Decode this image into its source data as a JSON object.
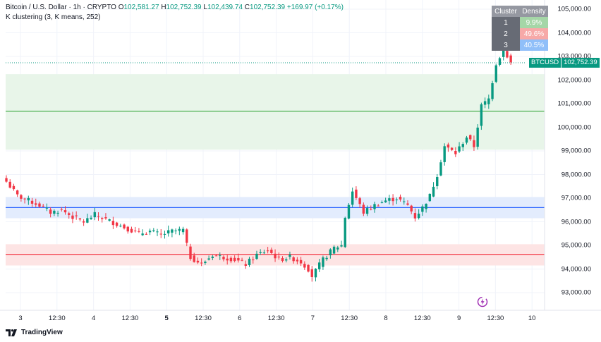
{
  "header": {
    "symbol": "Bitcoin / U.S. Dollar · 1h · CRYPTO",
    "o_label": "O",
    "o_value": "102,581.27",
    "h_label": "H",
    "h_value": "102,752.39",
    "l_label": "L",
    "l_value": "102,439.74",
    "c_label": "C",
    "c_value": "102,752.39",
    "change": "+169.97 (+0.17%)"
  },
  "indicator": {
    "label": "K clustering (3, K means, 252)"
  },
  "cluster_table": {
    "headers": [
      "Cluster",
      "Density"
    ],
    "rows": [
      {
        "id": "1",
        "density": "9.9%",
        "color": "#a5d6a7"
      },
      {
        "id": "2",
        "density": "49.6%",
        "color": "#f7a9a8"
      },
      {
        "id": "3",
        "density": "40.5%",
        "color": "#90bff9"
      }
    ]
  },
  "price_tag": {
    "symbol": "BTCUSD",
    "value": "102,752.39"
  },
  "branding": "TradingView",
  "colors": {
    "up": "#089981",
    "down": "#f23645",
    "green_level": "#4caf50",
    "blue_level": "#2962ff",
    "red_level": "#f23645"
  },
  "chart_data": {
    "type": "candlestick",
    "y_ticks": [
      "105,000.00",
      "104,000.00",
      "103,000.00",
      "102,000.00",
      "101,000.00",
      "100,000.00",
      "99,000.00",
      "98,000.00",
      "97,000.00",
      "96,000.00",
      "95,000.00",
      "94,000.00",
      "93,000.00"
    ],
    "ylim": [
      92700,
      105300
    ],
    "x_ticks": [
      {
        "label": "3",
        "bold": false
      },
      {
        "label": "12:30",
        "bold": false
      },
      {
        "label": "4",
        "bold": false
      },
      {
        "label": "12:30",
        "bold": false
      },
      {
        "label": "5",
        "bold": true
      },
      {
        "label": "12:30",
        "bold": false
      },
      {
        "label": "6",
        "bold": false
      },
      {
        "label": "12:30",
        "bold": false
      },
      {
        "label": "7",
        "bold": false
      },
      {
        "label": "12:30",
        "bold": false
      },
      {
        "label": "8",
        "bold": false
      },
      {
        "label": "12:30",
        "bold": false
      },
      {
        "label": "9",
        "bold": false
      },
      {
        "label": "12:30",
        "bold": false
      },
      {
        "label": "10",
        "bold": false
      }
    ],
    "zones": [
      {
        "name": "cluster-1",
        "low": 99050,
        "high": 102250,
        "level": 100680,
        "fill": "#e8f5e9",
        "line": "#4caf50"
      },
      {
        "name": "cluster-3",
        "low": 96150,
        "high": 97050,
        "level": 96600,
        "fill": "#e3ecfd",
        "line": "#2962ff"
      },
      {
        "name": "cluster-2",
        "low": 94150,
        "high": 95050,
        "level": 94620,
        "fill": "#fde4e4",
        "line": "#f23645"
      }
    ],
    "last_price": 102752.39,
    "anchor_points": [
      [
        0,
        97700
      ],
      [
        3,
        97100
      ],
      [
        6,
        96900
      ],
      [
        9,
        96700
      ],
      [
        12,
        96400
      ],
      [
        15,
        96500
      ],
      [
        18,
        96200
      ],
      [
        21,
        96000
      ],
      [
        24,
        96300
      ],
      [
        27,
        96100
      ],
      [
        30,
        95900
      ],
      [
        33,
        95700
      ],
      [
        36,
        95500
      ],
      [
        39,
        95600
      ],
      [
        42,
        95450
      ],
      [
        45,
        95600
      ],
      [
        48,
        95650
      ],
      [
        49,
        95000
      ],
      [
        50,
        94500
      ],
      [
        53,
        94200
      ],
      [
        56,
        94600
      ],
      [
        59,
        94500
      ],
      [
        62,
        94400
      ],
      [
        65,
        94200
      ],
      [
        68,
        94600
      ],
      [
        71,
        94800
      ],
      [
        74,
        94400
      ],
      [
        77,
        94500
      ],
      [
        80,
        94300
      ],
      [
        82,
        94000
      ],
      [
        83,
        93700
      ],
      [
        86,
        94400
      ],
      [
        89,
        94900
      ],
      [
        91,
        95000
      ],
      [
        92,
        96200
      ],
      [
        94,
        97300
      ],
      [
        97,
        96400
      ],
      [
        100,
        96700
      ],
      [
        103,
        96900
      ],
      [
        106,
        97000
      ],
      [
        109,
        96700
      ],
      [
        111,
        96200
      ],
      [
        113,
        96600
      ],
      [
        115,
        97100
      ],
      [
        117,
        98000
      ],
      [
        119,
        99200
      ],
      [
        122,
        98900
      ],
      [
        125,
        99600
      ],
      [
        127,
        99200
      ],
      [
        129,
        100900
      ],
      [
        131,
        101200
      ],
      [
        133,
        102700
      ],
      [
        135,
        103300
      ],
      [
        137,
        102752.39
      ]
    ]
  }
}
